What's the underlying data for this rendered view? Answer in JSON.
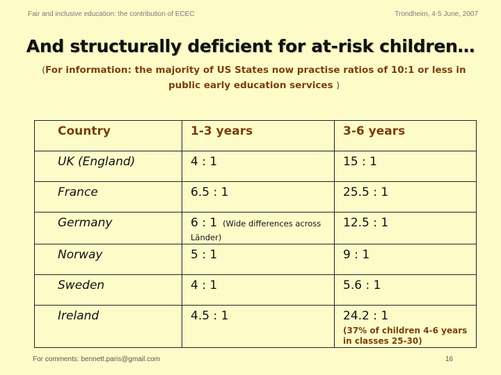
{
  "header": {
    "left": "Fair and inclusive education: the contribution of ECEC",
    "right": "Trondheim, 4-5 June, 2007"
  },
  "title": "And structurally deficient for at-risk children…",
  "subtitle": {
    "open_paren": "(",
    "text": "For information: the majority of US States now practise ratios of 10:1 or less in public early education services",
    "close_paren": ")"
  },
  "table": {
    "headers": [
      "Country",
      "1-3 years",
      "3-6 years"
    ],
    "rows": [
      {
        "country": "UK (England)",
        "age_1_3": "4 : 1",
        "age_3_6": "15 : 1"
      },
      {
        "country": "France",
        "age_1_3": "6.5 : 1",
        "age_3_6": "25.5 : 1"
      },
      {
        "country": "Germany",
        "age_1_3": "6 : 1",
        "age_1_3_note": "(Wide differences across Länder)",
        "age_3_6": "12.5 : 1"
      },
      {
        "country": "Norway",
        "age_1_3": "5 : 1",
        "age_3_6": "9 : 1"
      },
      {
        "country": "Sweden",
        "age_1_3": "4 : 1",
        "age_3_6": "5.6 : 1"
      },
      {
        "country": "Ireland",
        "age_1_3": "4.5 : 1",
        "age_3_6": "24.2 : 1",
        "age_3_6_note": "(37% of children 4-6 years in classes 25-30)"
      }
    ]
  },
  "footer": {
    "contact": "For comments: bennett.paris@gmail.com",
    "page_number": "16"
  }
}
